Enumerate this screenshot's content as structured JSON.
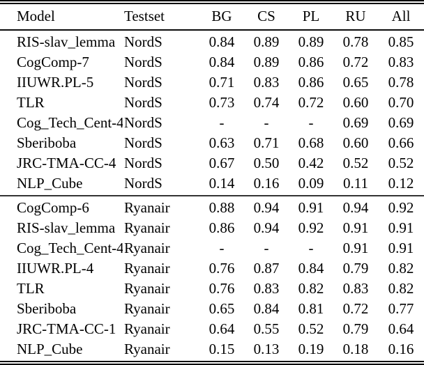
{
  "page": {
    "background_color": "#ffffff",
    "text_color": "#000000",
    "rule_color": "#000000"
  },
  "table": {
    "headers": [
      "Model",
      "Testset",
      "BG",
      "CS",
      "PL",
      "RU",
      "All"
    ],
    "groups": [
      {
        "testset_name": "NordS",
        "rows": [
          [
            "RIS-slav_lemma",
            "NordS",
            "0.84",
            "0.89",
            "0.89",
            "0.78",
            "0.85"
          ],
          [
            "CogComp-7",
            "NordS",
            "0.84",
            "0.89",
            "0.86",
            "0.72",
            "0.83"
          ],
          [
            "IIUWR.PL-5",
            "NordS",
            "0.71",
            "0.83",
            "0.86",
            "0.65",
            "0.78"
          ],
          [
            "TLR",
            "NordS",
            "0.73",
            "0.74",
            "0.72",
            "0.60",
            "0.70"
          ],
          [
            "Cog_Tech_Cent-4",
            "NordS",
            "-",
            "-",
            "-",
            "0.69",
            "0.69"
          ],
          [
            "Sberiboba",
            "NordS",
            "0.63",
            "0.71",
            "0.68",
            "0.60",
            "0.66"
          ],
          [
            "JRC-TMA-CC-4",
            "NordS",
            "0.67",
            "0.50",
            "0.42",
            "0.52",
            "0.52"
          ],
          [
            "NLP_Cube",
            "NordS",
            "0.14",
            "0.16",
            "0.09",
            "0.11",
            "0.12"
          ]
        ]
      },
      {
        "testset_name": "Ryanair",
        "rows": [
          [
            "CogComp-6",
            "Ryanair",
            "0.88",
            "0.94",
            "0.91",
            "0.94",
            "0.92"
          ],
          [
            "RIS-slav_lemma",
            "Ryanair",
            "0.86",
            "0.94",
            "0.92",
            "0.91",
            "0.91"
          ],
          [
            "Cog_Tech_Cent-4",
            "Ryanair",
            "-",
            "-",
            "-",
            "0.91",
            "0.91"
          ],
          [
            "IIUWR.PL-4",
            "Ryanair",
            "0.76",
            "0.87",
            "0.84",
            "0.79",
            "0.82"
          ],
          [
            "TLR",
            "Ryanair",
            "0.76",
            "0.83",
            "0.82",
            "0.83",
            "0.82"
          ],
          [
            "Sberiboba",
            "Ryanair",
            "0.65",
            "0.84",
            "0.81",
            "0.72",
            "0.77"
          ],
          [
            "JRC-TMA-CC-1",
            "Ryanair",
            "0.64",
            "0.55",
            "0.52",
            "0.79",
            "0.64"
          ],
          [
            "NLP_Cube",
            "Ryanair",
            "0.15",
            "0.13",
            "0.19",
            "0.18",
            "0.16"
          ]
        ]
      }
    ]
  }
}
